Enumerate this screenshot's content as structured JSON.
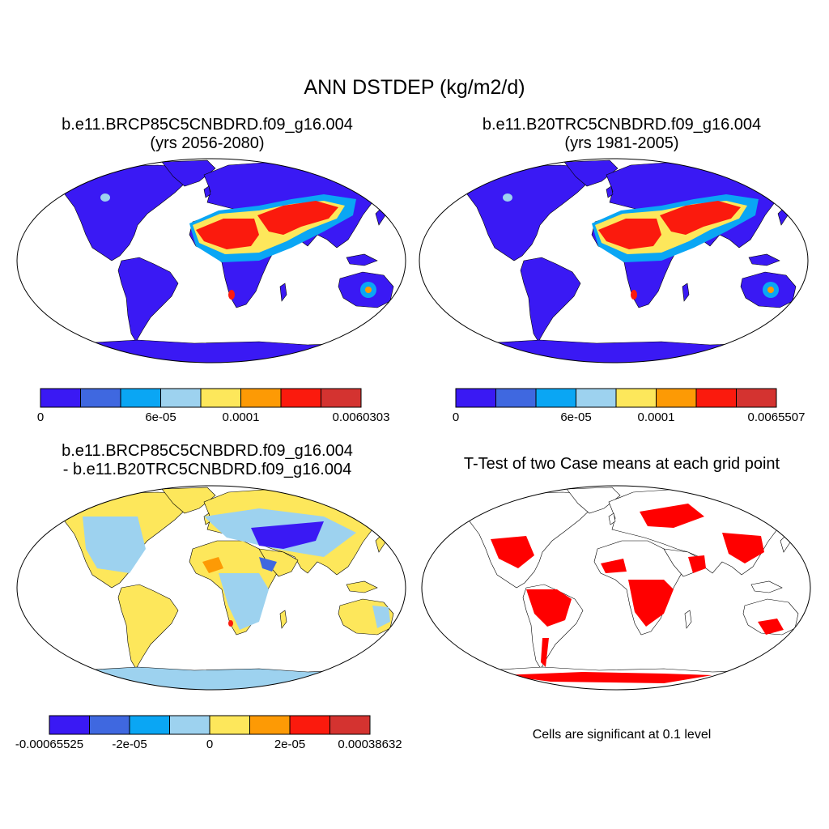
{
  "title": "ANN DSTDEP (kg/m2/d)",
  "panels": [
    {
      "id": "p1",
      "title_line1": "b.e11.BRCP85C5CNBDRD.f09_g16.004",
      "title_line2": "(yrs 2056-2080)",
      "kind": "field",
      "colorbar": {
        "colors": [
          "#3a19f4",
          "#3f68e0",
          "#0aa6f4",
          "#9dd2ef",
          "#fde75b",
          "#fd9a05",
          "#fb1a0d",
          "#d43330"
        ],
        "tick_labels": [
          "0",
          "6e-05",
          "0.0001",
          "0.0060303"
        ],
        "tick_box_index": [
          0,
          3,
          5,
          8
        ]
      }
    },
    {
      "id": "p2",
      "title_line1": "b.e11.B20TRC5CNBDRD.f09_g16.004",
      "title_line2": "(yrs 1981-2005)",
      "kind": "field",
      "colorbar": {
        "colors": [
          "#3a19f4",
          "#3f68e0",
          "#0aa6f4",
          "#9dd2ef",
          "#fde75b",
          "#fd9a05",
          "#fb1a0d",
          "#d43330"
        ],
        "tick_labels": [
          "0",
          "6e-05",
          "0.0001",
          "0.0065507"
        ],
        "tick_box_index": [
          0,
          3,
          5,
          8
        ]
      }
    },
    {
      "id": "p3",
      "title_line1": "b.e11.BRCP85C5CNBDRD.f09_g16.004",
      "title_line2": "- b.e11.B20TRC5CNBDRD.f09_g16.004",
      "kind": "difference",
      "colorbar": {
        "colors": [
          "#3a19f4",
          "#3f68e0",
          "#0aa6f4",
          "#9dd2ef",
          "#fde75b",
          "#fd9a05",
          "#fb1a0d",
          "#d43330"
        ],
        "tick_labels": [
          "-0.00065525",
          "-2e-05",
          "0",
          "2e-05",
          "0.00038632"
        ],
        "tick_box_index": [
          0,
          2,
          4,
          6,
          8
        ]
      }
    },
    {
      "id": "p4",
      "title_line1": "T-Test of two Case means at each grid point",
      "kind": "significance",
      "note": "Cells are significant at 0.1 level",
      "significant_color": "#ff0000"
    }
  ],
  "colors": {
    "ocean": "#ffffff",
    "coast": "#000000",
    "frame": "#000000"
  }
}
